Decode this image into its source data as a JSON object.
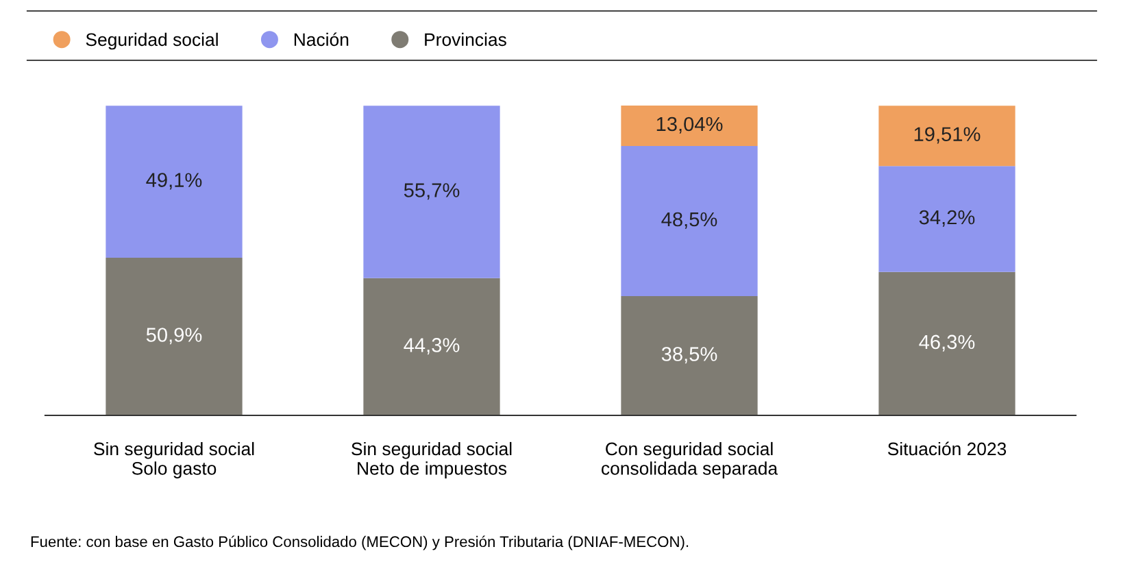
{
  "chart_data": {
    "type": "bar",
    "stacked": true,
    "legend": "top left",
    "categories": [
      "Sin seguridad social\nSolo gasto",
      "Sin seguridad social\nNeto de impuestos",
      "Con seguridad social\nconsolidada separada",
      "Situación 2023"
    ],
    "series": [
      {
        "name": "Provincias",
        "color": "#7f7c73",
        "values": [
          50.9,
          44.3,
          38.5,
          46.3
        ],
        "value_labels": [
          "50,9%",
          "44,3%",
          "38,5%",
          "46,3%"
        ]
      },
      {
        "name": "Nación",
        "color": "#8f96ef",
        "values": [
          49.1,
          55.7,
          48.5,
          34.2
        ],
        "value_labels": [
          "49,1%",
          "55,7%",
          "48,5%",
          "34,2%"
        ]
      },
      {
        "name": "Seguridad social",
        "color": "#f0a05e",
        "values": [
          null,
          null,
          13.04,
          19.51
        ],
        "value_labels": [
          null,
          null,
          "13,04%",
          "19,51%"
        ]
      }
    ],
    "annotations": [
      "Fuente: con base en Gasto Público Consolidado (MECON) y Presión Tributaria (DNIAF-MECON)."
    ]
  }
}
